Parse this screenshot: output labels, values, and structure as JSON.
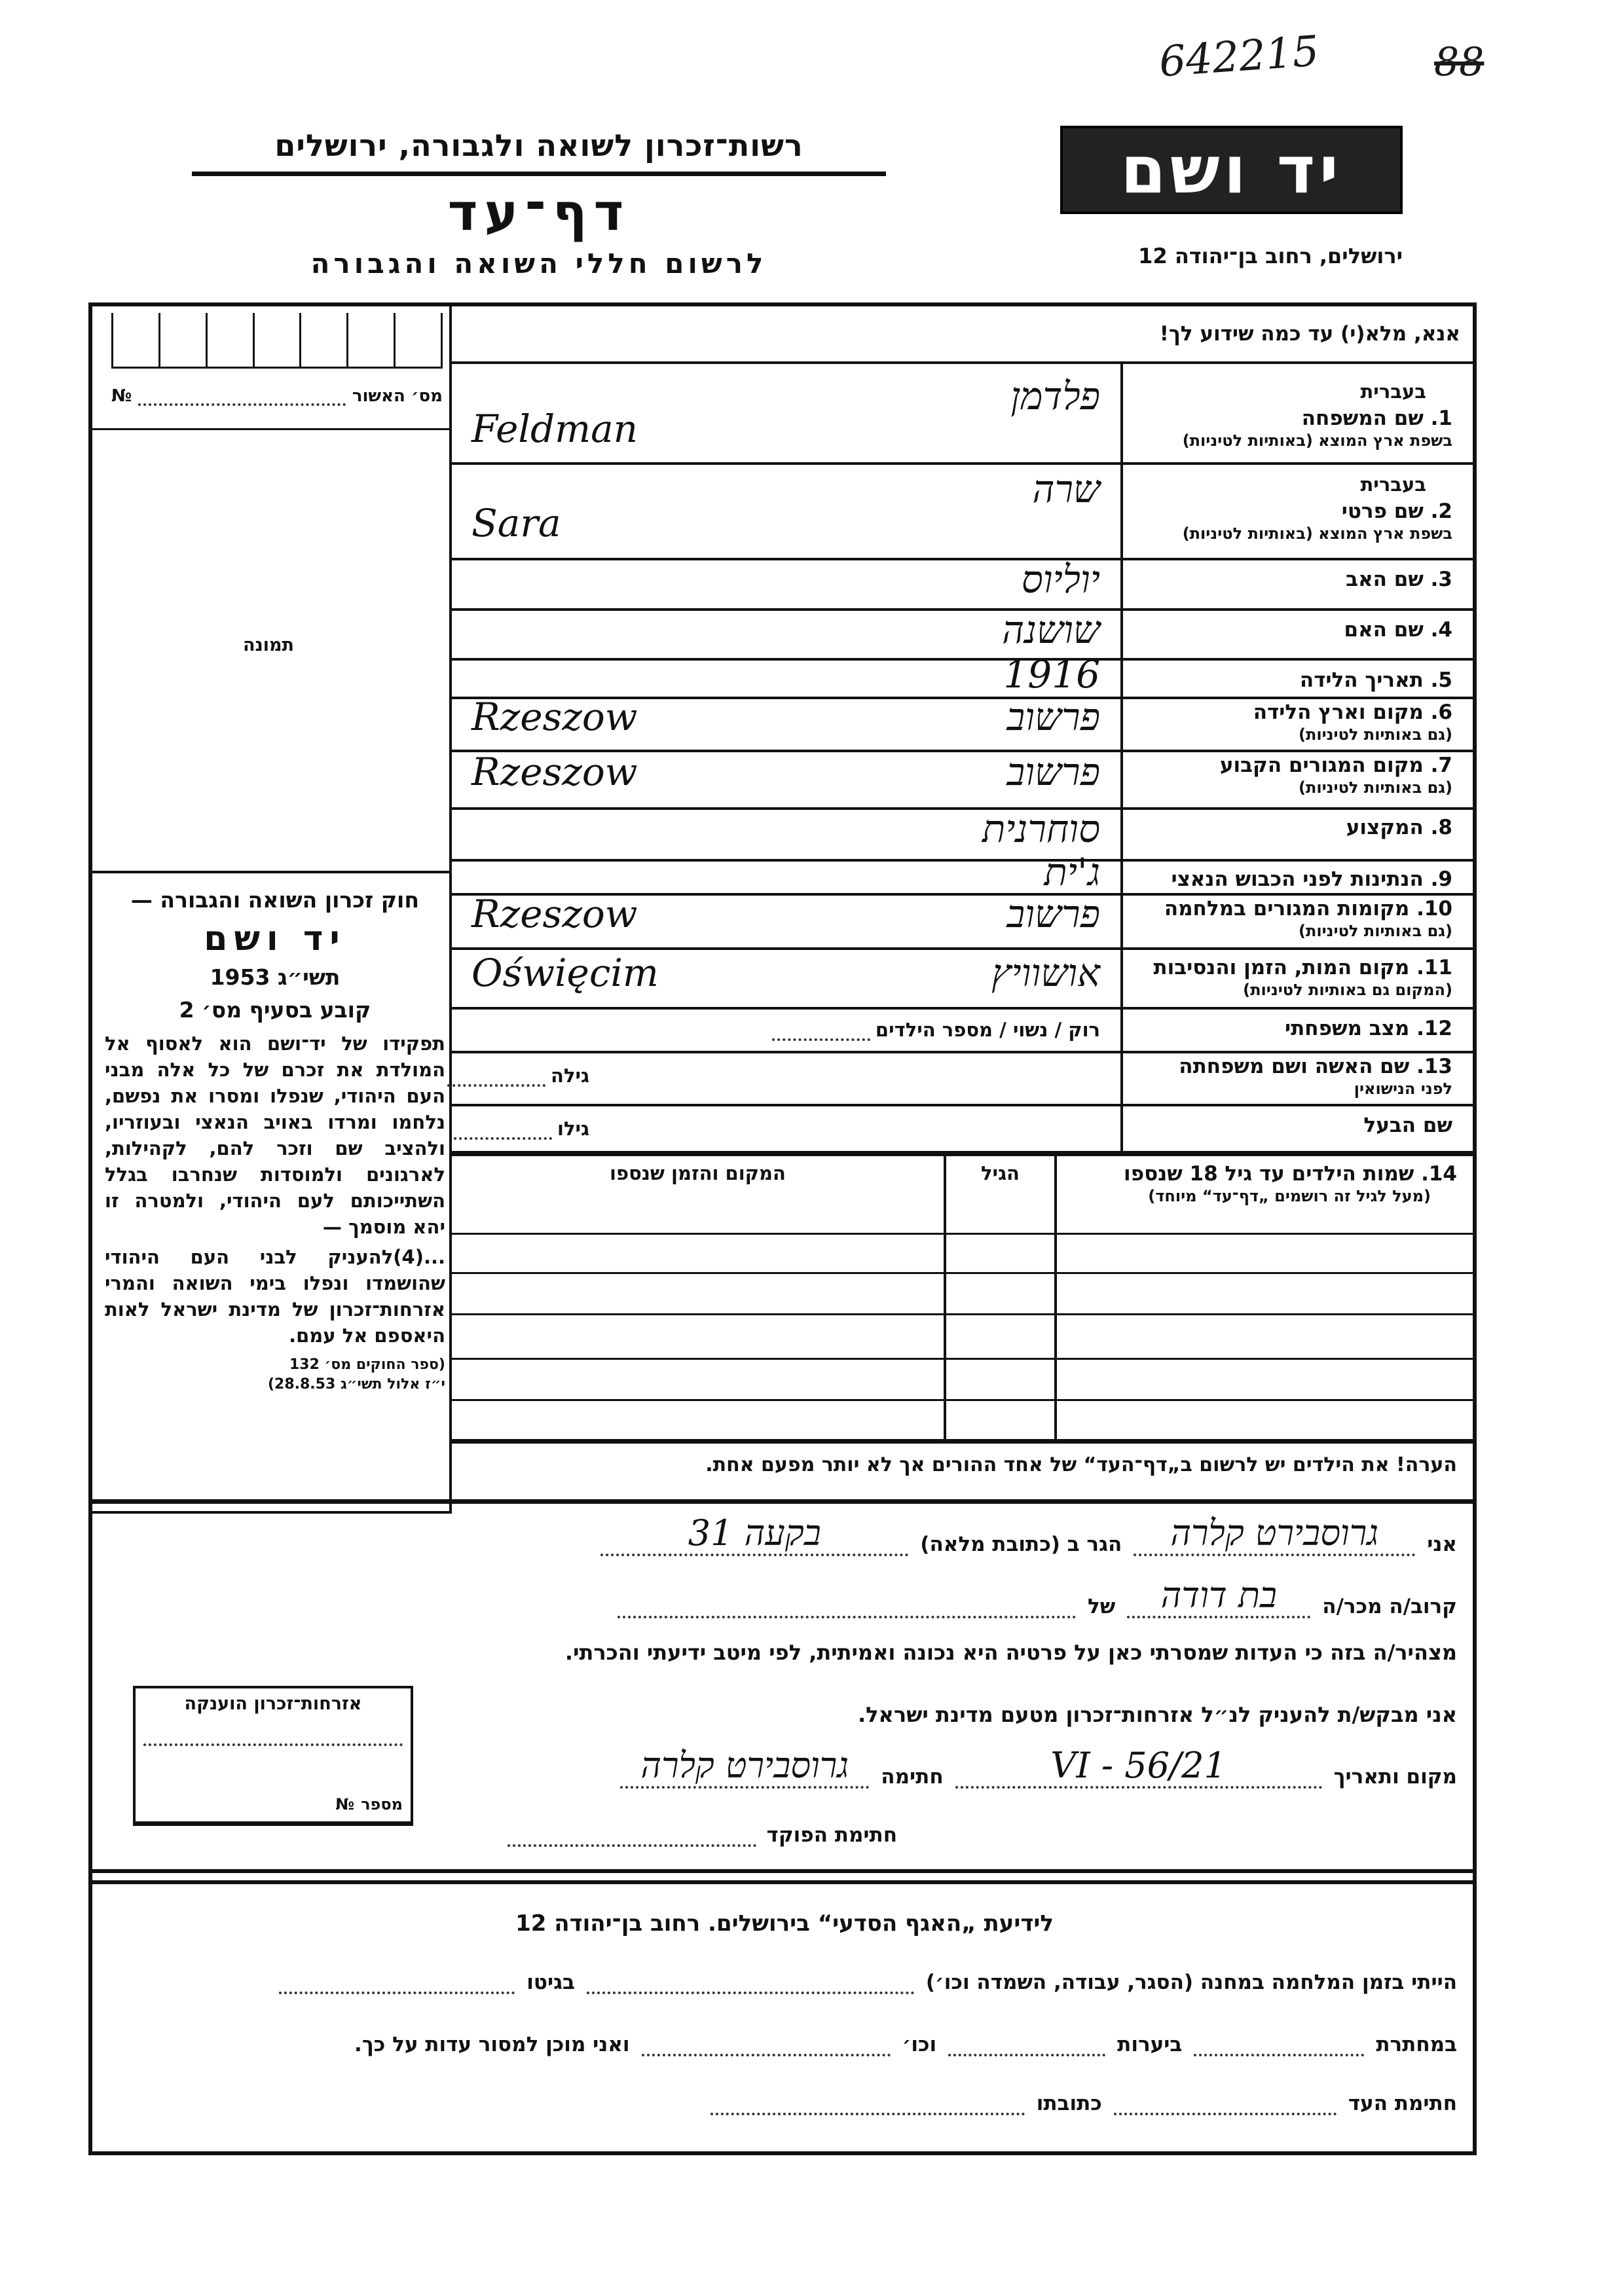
{
  "header": {
    "handwritten_ref": "642215",
    "page_mark": "88",
    "org": "רשות־זכרון לשואה ולגבורה, ירושלים",
    "title": "דף־עד",
    "subtitle": "לרשום חללי השואה והגבורה",
    "logo": "יד ושם",
    "address": "ירושלים, רחוב בן־יהודה 12"
  },
  "instruction": "אנא, מלא(י) עד כמה שידוע לך!",
  "left": {
    "approval_label": "מס׳ האשור",
    "approval_no": "№",
    "photo_label": "תמונה",
    "law": {
      "title": "חוק זכרון השואה והגבורה —",
      "name": "יד ושם",
      "year": "תשי״ג 1953",
      "section": "קובע בסעיף מס׳ 2",
      "body": "תפקידו של יד־ושם הוא לאסוף אל המולדת את זכרם של כל אלה מבני העם היהודי, שנפלו ומסרו את נפשם, נלחמו ומרדו באויב הנאצי ובעוזריו, ולהציב שם וזכר להם, לקהילות, לארגונים ולמוסדות שנחרבו בגלל השתייכותם לעם היהודי, ולמטרה זו יהא מוסמך —",
      "body2": "...(4)להעניק לבני העם היהודי שהושמדו ונפלו בימי השואה והמרי אזרחות־זכרון של מדינת ישראל לאות היאספם אל עמם.",
      "footnote1": "(ספר החוקים מס׳ 132",
      "footnote2": "י״ז אלול תשי״ג 28.8.53)"
    },
    "stamp": {
      "title": "אזרחות־זכרון הוענקה",
      "number_label": "מספר",
      "no": "№"
    }
  },
  "fields": [
    {
      "num": "1.",
      "label": "שם המשפחה",
      "heb": "בעברית",
      "sub": "בשפת ארץ המוצא (באותיות לטיניות)",
      "hebrew_value": "פלדמן",
      "latin_value": "Feldman"
    },
    {
      "num": "2.",
      "label": "שם פרטי",
      "heb": "בעברית",
      "sub": "בשפת ארץ המוצא (באותיות לטיניות)",
      "hebrew_value": "שרה",
      "latin_value": "Sara"
    },
    {
      "num": "3.",
      "label": "שם האב",
      "hebrew_value": "יוליוס"
    },
    {
      "num": "4.",
      "label": "שם האם",
      "hebrew_value": "שושנה"
    },
    {
      "num": "5.",
      "label": "תאריך הלידה",
      "hebrew_value": "1916"
    },
    {
      "num": "6.",
      "label": "מקום וארץ הלידה",
      "sub": "(גם באותיות לטיניות)",
      "hebrew_value": "פרשוב",
      "latin_value": "Rzeszow"
    },
    {
      "num": "7.",
      "label": "מקום המגורים הקבוע",
      "sub": "(גם באותיות לטיניות)",
      "hebrew_value": "פרשוב",
      "latin_value": "Rzeszow"
    },
    {
      "num": "8.",
      "label": "המקצוע",
      "hebrew_value": "סוחרנית"
    },
    {
      "num": "9.",
      "label": "הנתינות לפני הכבוש הנאצי",
      "hebrew_value": "ג'ית"
    },
    {
      "num": "10.",
      "label": "מקומות המגורים במלחמה",
      "sub": "(גם באותיות לטיניות)",
      "hebrew_value": "פרשוב",
      "latin_value": "Rzeszow"
    },
    {
      "num": "11.",
      "label": "מקום המות, הזמן והנסיבות",
      "sub": "(המקום גם באותיות לטיניות)",
      "hebrew_value": "אושוויץ",
      "latin_value": "Oświęcim"
    },
    {
      "num": "12.",
      "label": "מצב משפחתי",
      "printed": "רוק / נשוי / מספר הילדים"
    },
    {
      "num": "13.",
      "label": "שם האשה ושם משפחתה",
      "sub": "לפני הנישואין",
      "printed": "גילה"
    },
    {
      "num": "",
      "label": "שם הבעל",
      "printed": "גילו"
    }
  ],
  "children": {
    "label": "14. שמות הילדים עד גיל 18 שנספו",
    "sub": "(מעל לגיל זה רושמים „דף־עד“ מיוחד)",
    "age_header": "הגיל",
    "place_header": "המקום והזמן שנספו"
  },
  "note": "הערה!  את הילדים יש לרשום ב„דף־העד“ של אחד ההורים אך לא יותר מפעם אחת.",
  "declaration": {
    "i_label": "אני",
    "witness_name": "גרוסבירט קלרה",
    "resides_label": "הגר ב (כתובת מלאה)",
    "address_value": "בקעה 31",
    "relation_label": "קרוב/ה מכר/ה",
    "relation_value": "בת דודה",
    "of_label": "של",
    "statement": "מצהיר/ה בזה כי העדות שמסרתי כאן על פרטיה היא נכונה ואמיתית, לפי מיטב ידיעתי והכרתי.",
    "request": "אני מבקש/ת להעניק לנ״ל אזרחות־זכרון מטעם מדינת ישראל.",
    "place_date_label": "מקום ותאריך",
    "place_date_value": "21/VI - 56",
    "signature_label": "חתימה",
    "signature_value": "גרוסבירט קלרה",
    "official_signature_label": "חתימת הפוקד"
  },
  "info": {
    "title": "לידיעת „האגף הסדעי“ בירושלים.  רחוב בן־יהודה 12",
    "camp_label": "הייתי בזמן המלחמה במחנה (הסגר, עבודה, השמדה וכו׳)",
    "ghetto_label": "בגיטו",
    "underground_label": "במחתרת",
    "forests_label": "ביערות",
    "etc_label": "וכו׳",
    "willing_label": "ואני מוכן למסור עדות על כך.",
    "witness_sig_label": "חתימת העד",
    "address_label": "כתובתו"
  }
}
